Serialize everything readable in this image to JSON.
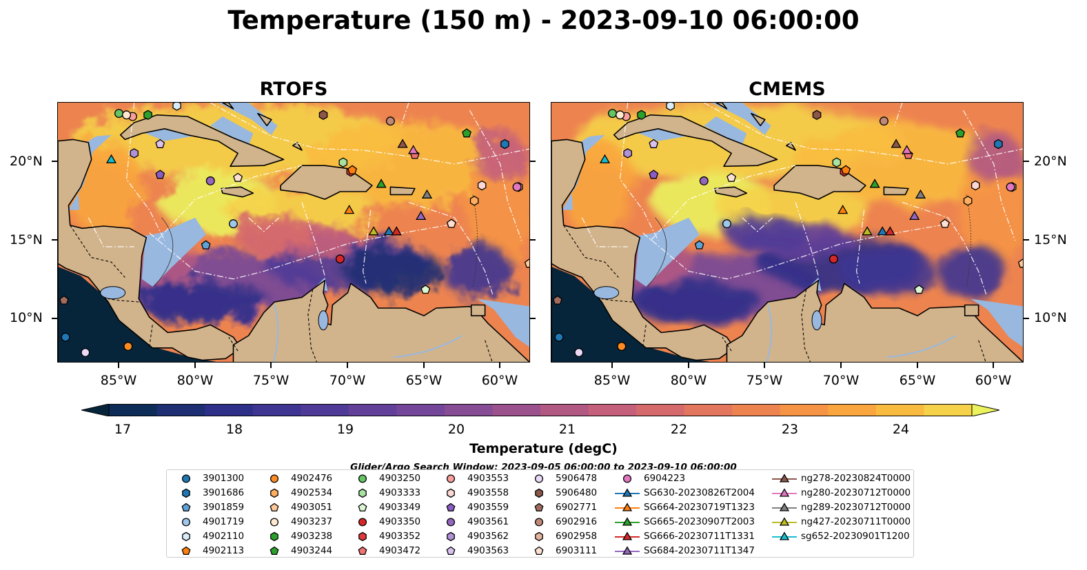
{
  "title": "Temperature (150 m) - 2023-09-10 06:00:00",
  "panels": [
    {
      "title": "RTOFS"
    },
    {
      "title": "CMEMS"
    }
  ],
  "lat_labels": [
    "20°N",
    "15°N",
    "10°N"
  ],
  "lon_labels": [
    "85°W",
    "80°W",
    "75°W",
    "70°W",
    "65°W",
    "60°W"
  ],
  "map_extent": {
    "lon": [
      -89,
      -58
    ],
    "lat": [
      7,
      24
    ]
  },
  "colorbar": {
    "label": "Temperature (degC)",
    "ticks": [
      "17",
      "18",
      "19",
      "20",
      "21",
      "22",
      "23",
      "24"
    ],
    "range": [
      16.5,
      24.5
    ],
    "extend": "both",
    "colors": [
      "#07253a",
      "#0d2d58",
      "#1d2f72",
      "#2d2f88",
      "#3e3592",
      "#4f3b97",
      "#623f99",
      "#744699",
      "#864d94",
      "#9b518c",
      "#b15883",
      "#c4607b",
      "#d56a6c",
      "#e2765e",
      "#ed8450",
      "#f59445",
      "#f9a63e",
      "#f9bb3f",
      "#f5d24a",
      "#ebf25e"
    ]
  },
  "search_window": "Glider/Argo Search Window: 2023-09-05 06:00:00 to 2023-09-10 06:00:00",
  "legend": [
    {
      "id": "3901300",
      "marker": "circle",
      "color": "#1f77b4"
    },
    {
      "id": "3901686",
      "marker": "hexagon",
      "color": "#1f77b4"
    },
    {
      "id": "3901859",
      "marker": "pentagon",
      "color": "#5fa2d6"
    },
    {
      "id": "4901719",
      "marker": "circle",
      "color": "#9ec7ea"
    },
    {
      "id": "4902110",
      "marker": "hexagon",
      "color": "#d8ecfa"
    },
    {
      "id": "4902113",
      "marker": "pentagon",
      "color": "#ff7f0e"
    },
    {
      "id": "4902476",
      "marker": "circle",
      "color": "#ff8c22"
    },
    {
      "id": "4902534",
      "marker": "hexagon",
      "color": "#ffad5f"
    },
    {
      "id": "4903051",
      "marker": "pentagon",
      "color": "#ffc99a"
    },
    {
      "id": "4903237",
      "marker": "circle",
      "color": "#ffe9d0"
    },
    {
      "id": "4903238",
      "marker": "hexagon",
      "color": "#2ca02c"
    },
    {
      "id": "4903244",
      "marker": "pentagon",
      "color": "#2ca02c"
    },
    {
      "id": "4903250",
      "marker": "circle",
      "color": "#63c563"
    },
    {
      "id": "4903333",
      "marker": "hexagon",
      "color": "#a7e2a0"
    },
    {
      "id": "4903349",
      "marker": "pentagon",
      "color": "#dcf6d2"
    },
    {
      "id": "4903350",
      "marker": "circle",
      "color": "#d62728"
    },
    {
      "id": "4903352",
      "marker": "hexagon",
      "color": "#e0393b"
    },
    {
      "id": "4903472",
      "marker": "pentagon",
      "color": "#f07272"
    },
    {
      "id": "4903553",
      "marker": "circle",
      "color": "#f9a09c"
    },
    {
      "id": "4903558",
      "marker": "hexagon",
      "color": "#fdd7d3"
    },
    {
      "id": "4903559",
      "marker": "pentagon",
      "color": "#8a5cc4"
    },
    {
      "id": "4903561",
      "marker": "circle",
      "color": "#9467bd"
    },
    {
      "id": "4903562",
      "marker": "hexagon",
      "color": "#b192d6"
    },
    {
      "id": "4903563",
      "marker": "pentagon",
      "color": "#d9c2ef"
    },
    {
      "id": "5906478",
      "marker": "circle",
      "color": "#ead9f7"
    },
    {
      "id": "5906480",
      "marker": "hexagon",
      "color": "#8c564b"
    },
    {
      "id": "6902771",
      "marker": "pentagon",
      "color": "#a06c5f"
    },
    {
      "id": "6902916",
      "marker": "circle",
      "color": "#c08878"
    },
    {
      "id": "6902958",
      "marker": "hexagon",
      "color": "#e5b49e"
    },
    {
      "id": "6903111",
      "marker": "pentagon",
      "color": "#fde0d2"
    },
    {
      "id": "6904223",
      "marker": "circle",
      "color": "#e377c2"
    },
    {
      "id": "SG630-20230826T2004",
      "marker": "triangle",
      "color": "#1f77b4"
    },
    {
      "id": "SG664-20230719T1323",
      "marker": "triangle",
      "color": "#ff7f0e"
    },
    {
      "id": "SG665-20230907T2003",
      "marker": "triangle",
      "color": "#2ca02c"
    },
    {
      "id": "SG666-20230711T1331",
      "marker": "triangle",
      "color": "#d62728"
    },
    {
      "id": "SG684-20230711T1347",
      "marker": "triangle",
      "color": "#9467bd"
    },
    {
      "id": "ng278-20230824T0000",
      "marker": "triangle",
      "color": "#8c564b"
    },
    {
      "id": "ng280-20230712T0000",
      "marker": "triangle",
      "color": "#e377c2"
    },
    {
      "id": "ng289-20230712T0000",
      "marker": "triangle",
      "color": "#7f7f7f"
    },
    {
      "id": "ng427-20230711T0000",
      "marker": "triangle",
      "color": "#bcbd22"
    },
    {
      "id": "sg652-20230901T1200",
      "marker": "triangle",
      "color": "#17becf"
    }
  ],
  "observations": [
    {
      "id": "3901686",
      "lon": -59.7,
      "lat": 21.3
    },
    {
      "id": "3901300",
      "lon": -88.5,
      "lat": 8.7
    },
    {
      "id": "3901859",
      "lon": -79.3,
      "lat": 14.7
    },
    {
      "id": "4901719",
      "lon": -77.5,
      "lat": 16.1
    },
    {
      "id": "4902110",
      "lon": -81.2,
      "lat": 23.8
    },
    {
      "id": "4902476",
      "lon": -84.4,
      "lat": 8.1
    },
    {
      "id": "4903250",
      "lon": -85.0,
      "lat": 23.3
    },
    {
      "id": "4903553",
      "lon": -84.1,
      "lat": 23.1
    },
    {
      "id": "4903238",
      "lon": -83.1,
      "lat": 23.2
    },
    {
      "id": "4903244",
      "lon": -62.2,
      "lat": 22.0
    },
    {
      "id": "4903333",
      "lon": -70.3,
      "lat": 20.1
    },
    {
      "id": "4903349",
      "lon": -64.9,
      "lat": 11.8
    },
    {
      "id": "4903350",
      "lon": -70.5,
      "lat": 13.8
    },
    {
      "id": "4903352",
      "lon": -69.8,
      "lat": 19.5
    },
    {
      "id": "4903472",
      "lon": -65.6,
      "lat": 20.6
    },
    {
      "id": "4903558",
      "lon": -61.2,
      "lat": 18.6
    },
    {
      "id": "4903559",
      "lon": -82.3,
      "lat": 19.3
    },
    {
      "id": "4903561",
      "lon": -79.0,
      "lat": 18.9
    },
    {
      "id": "4903562",
      "lon": -84.0,
      "lat": 20.7
    },
    {
      "id": "4903563",
      "lon": -82.3,
      "lat": 21.3
    },
    {
      "id": "5906478",
      "lon": -87.2,
      "lat": 7.7
    },
    {
      "id": "5906480",
      "lon": -71.6,
      "lat": 23.2
    },
    {
      "id": "6902771",
      "lon": -88.6,
      "lat": 11.1
    },
    {
      "id": "6902916",
      "lon": -67.2,
      "lat": 22.8
    },
    {
      "id": "6902958",
      "lon": -58.8,
      "lat": 18.5
    },
    {
      "id": "6903111",
      "lon": -77.2,
      "lat": 19.1
    },
    {
      "id": "6903111",
      "lon": -63.2,
      "lat": 16.1
    },
    {
      "id": "6904223",
      "lon": -58.9,
      "lat": 18.5
    },
    {
      "id": "4903051",
      "lon": -58.1,
      "lat": 13.5
    },
    {
      "id": "4903237",
      "lon": -84.5,
      "lat": 23.2
    },
    {
      "id": "4902534",
      "lon": -61.7,
      "lat": 17.6
    },
    {
      "id": "4902113",
      "lon": -69.7,
      "lat": 19.6
    },
    {
      "id": "sg652-20230901T1200",
      "lon": -85.5,
      "lat": 20.3
    },
    {
      "id": "SG664-20230719T1323",
      "lon": -69.9,
      "lat": 17.0
    },
    {
      "id": "SG665-20230907T2003",
      "lon": -67.8,
      "lat": 18.7
    },
    {
      "id": "ng427-20230711T0000",
      "lon": -68.3,
      "lat": 15.6
    },
    {
      "id": "SG630-20230826T2004",
      "lon": -67.3,
      "lat": 15.6
    },
    {
      "id": "SG666-20230711T1331",
      "lon": -66.8,
      "lat": 15.6
    },
    {
      "id": "SG684-20230711T1347",
      "lon": -65.2,
      "lat": 16.6
    },
    {
      "id": "ng278-20230824T0000",
      "lon": -66.4,
      "lat": 21.3
    },
    {
      "id": "ng280-20230712T0000",
      "lon": -65.7,
      "lat": 20.9
    },
    {
      "id": "ng289-20230712T0000",
      "lon": -64.8,
      "lat": 18.0
    }
  ]
}
